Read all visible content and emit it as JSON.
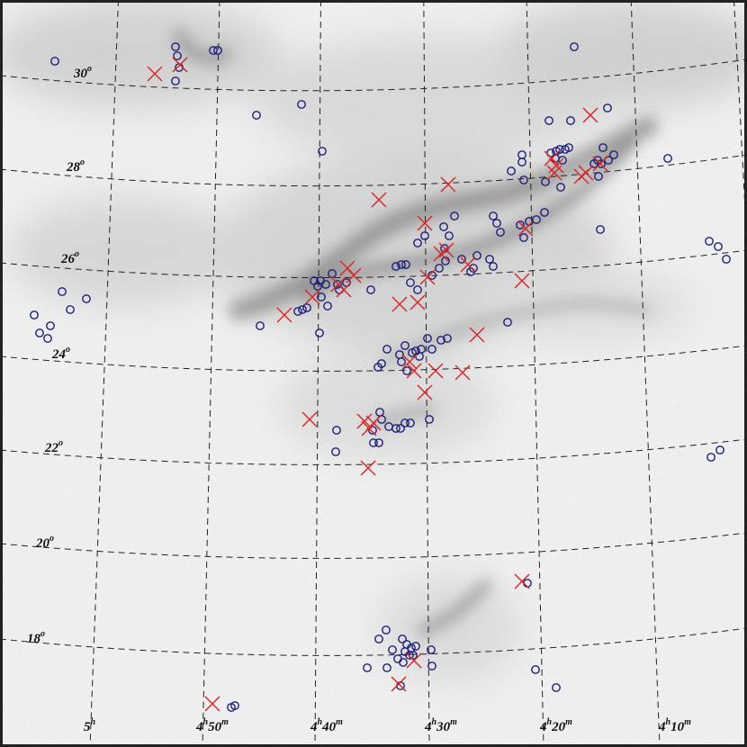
{
  "map": {
    "dec_labels": [
      {
        "value": "30",
        "unit": "o"
      },
      {
        "value": "28",
        "unit": "o"
      },
      {
        "value": "26",
        "unit": "o"
      },
      {
        "value": "24",
        "unit": "o"
      },
      {
        "value": "22",
        "unit": "o"
      },
      {
        "value": "20",
        "unit": "o"
      },
      {
        "value": "18",
        "unit": "o"
      }
    ],
    "ra_labels": [
      {
        "hours": "5",
        "h_unit": "h"
      },
      {
        "hours": "4",
        "h_unit": "h",
        "minutes": "50",
        "m_unit": "m"
      },
      {
        "hours": "4",
        "h_unit": "h",
        "minutes": "40",
        "m_unit": "m"
      },
      {
        "hours": "4",
        "h_unit": "h",
        "minutes": "30",
        "m_unit": "m"
      },
      {
        "hours": "4",
        "h_unit": "h",
        "minutes": "20",
        "m_unit": "m"
      },
      {
        "hours": "4",
        "h_unit": "h",
        "minutes": "10",
        "m_unit": "m"
      }
    ]
  }
}
